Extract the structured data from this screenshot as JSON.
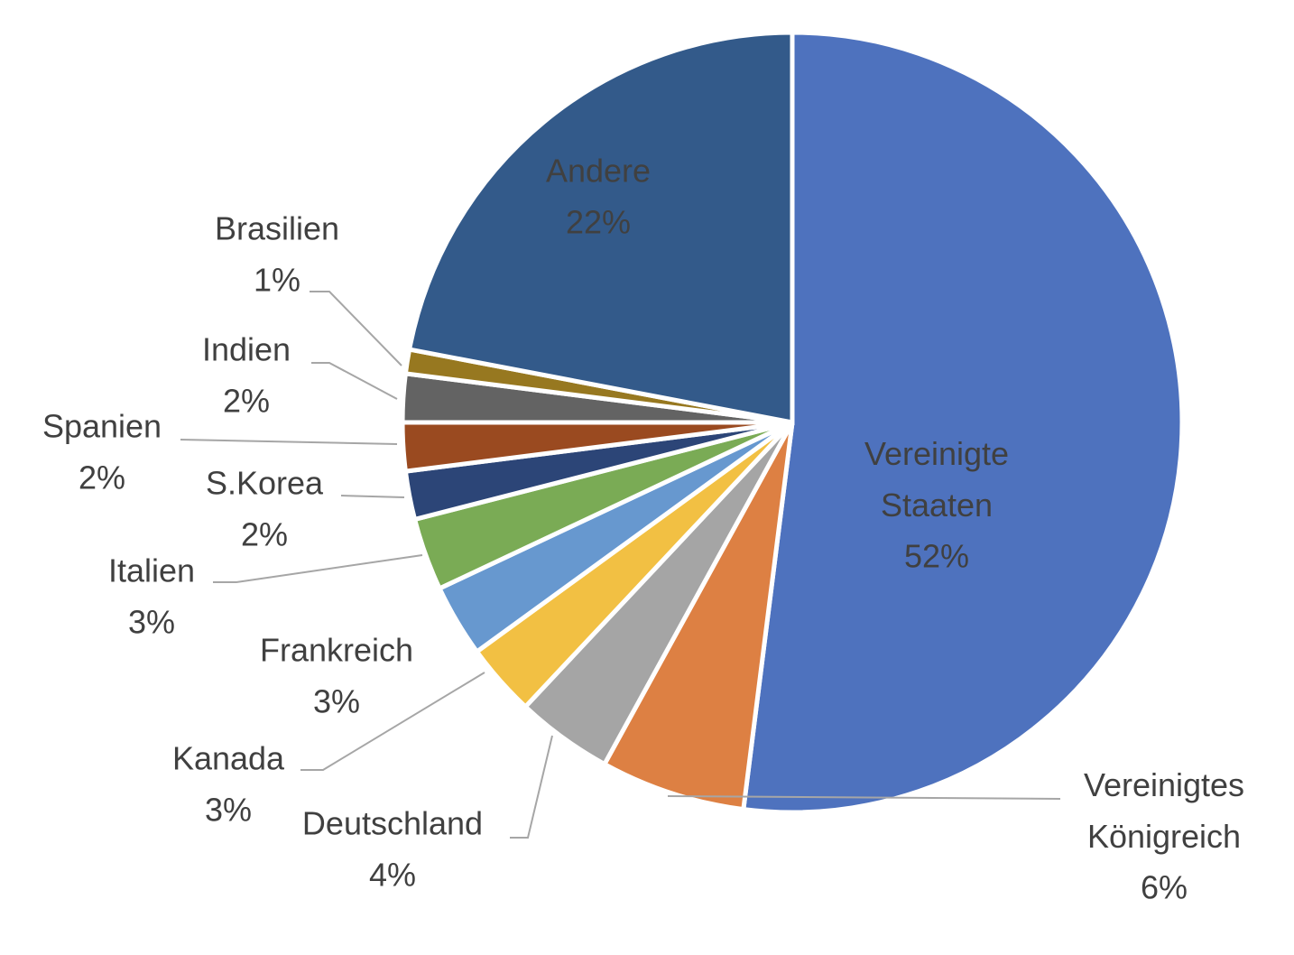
{
  "chart_data": {
    "type": "pie",
    "categories": [
      "Vereinigte Staaten",
      "Vereinigtes Königreich",
      "Deutschland",
      "Kanada",
      "Frankreich",
      "Italien",
      "S.Korea",
      "Spanien",
      "Indien",
      "Brasilien",
      "Andere"
    ],
    "values": [
      52,
      6,
      4,
      3,
      3,
      3,
      2,
      2,
      2,
      1,
      22
    ],
    "value_labels": [
      "52%",
      "6%",
      "4%",
      "3%",
      "3%",
      "3%",
      "2%",
      "2%",
      "2%",
      "1%",
      "22%"
    ],
    "colors": [
      "#4e72be",
      "#dd8043",
      "#a5a5a5",
      "#f2c043",
      "#6798cf",
      "#7aab55",
      "#2c4577",
      "#9a4a20",
      "#636363",
      "#977820",
      "#335a8a"
    ]
  }
}
